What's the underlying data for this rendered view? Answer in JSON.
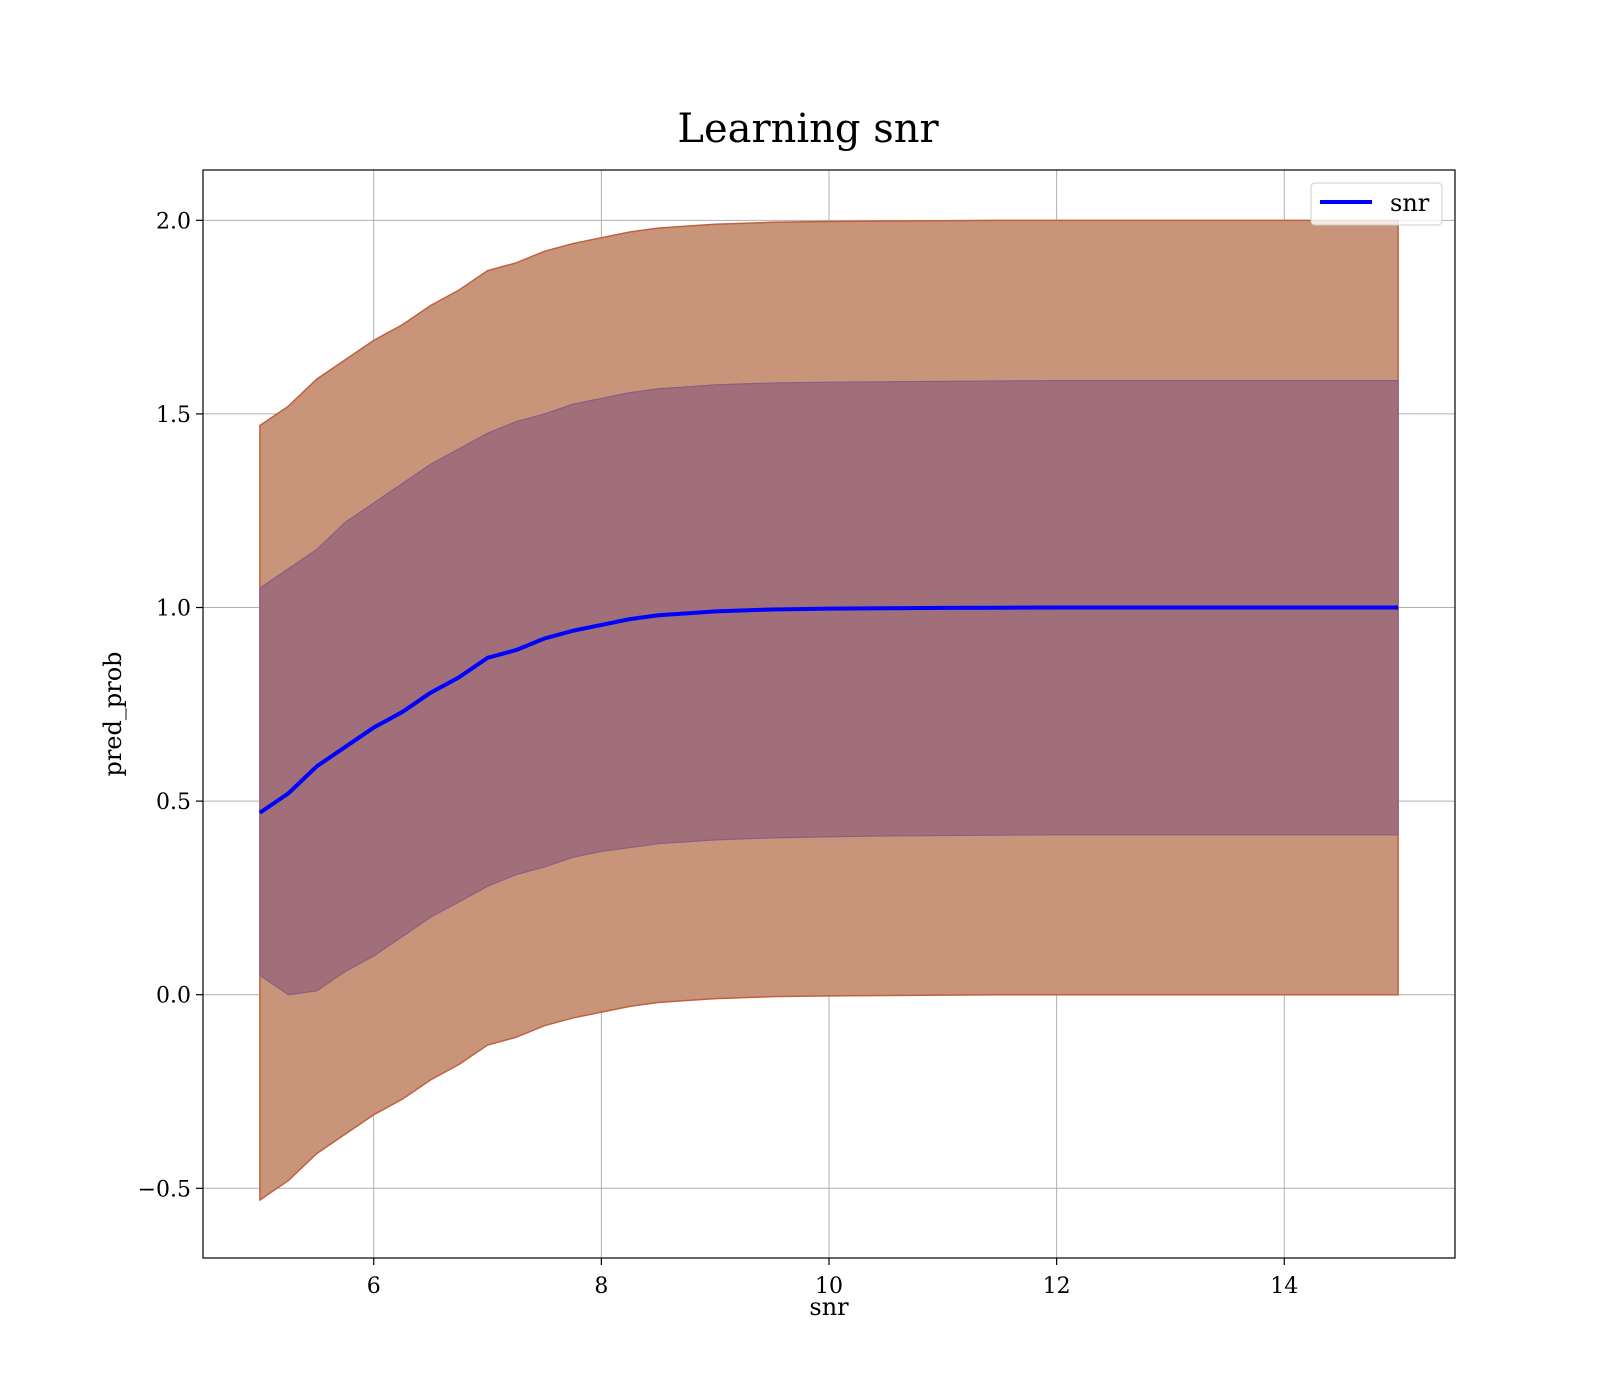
{
  "chart_data": {
    "type": "area",
    "title": "Learning snr",
    "xlabel": "snr",
    "ylabel": "pred_prob",
    "xlim": [
      4.5,
      15.5
    ],
    "ylim": [
      -0.68,
      2.13
    ],
    "xticks": [
      6,
      8,
      10,
      12,
      14
    ],
    "yticks": [
      -0.5,
      0.0,
      0.5,
      1.0,
      1.5,
      2.0
    ],
    "xtick_labels": [
      "6",
      "8",
      "10",
      "12",
      "14"
    ],
    "ytick_labels": [
      "−0.5",
      "0.0",
      "0.5",
      "1.0",
      "1.5",
      "2.0"
    ],
    "grid": true,
    "legend": {
      "position": "top-right",
      "entries": [
        "snr"
      ]
    },
    "colors": {
      "line": "#0000ff",
      "outer_band": "#c8957a",
      "outer_band_edge": "#c0603e",
      "inner_band": "#a16f79",
      "inner_band_edge": "#8a5f84"
    },
    "x": [
      5.0,
      5.25,
      5.5,
      5.75,
      6.0,
      6.25,
      6.5,
      6.75,
      7.0,
      7.25,
      7.5,
      7.75,
      8.0,
      8.25,
      8.5,
      8.75,
      9.0,
      9.5,
      10.0,
      10.5,
      11.0,
      11.5,
      12.0,
      12.5,
      13.0,
      13.5,
      14.0,
      14.5,
      15.0
    ],
    "series": [
      {
        "name": "snr",
        "values": [
          0.47,
          0.52,
          0.59,
          0.64,
          0.69,
          0.73,
          0.78,
          0.82,
          0.87,
          0.89,
          0.92,
          0.94,
          0.955,
          0.97,
          0.98,
          0.985,
          0.99,
          0.995,
          0.997,
          0.998,
          0.999,
          0.9995,
          1.0,
          1.0,
          1.0,
          1.0,
          1.0,
          1.0,
          1.0
        ],
        "inner_band": [
          [
            0.05,
            1.05
          ],
          [
            0.0,
            1.1
          ],
          [
            0.01,
            1.15
          ],
          [
            0.06,
            1.22
          ],
          [
            0.1,
            1.27
          ],
          [
            0.15,
            1.32
          ],
          [
            0.2,
            1.37
          ],
          [
            0.24,
            1.41
          ],
          [
            0.28,
            1.45
          ],
          [
            0.31,
            1.48
          ],
          [
            0.33,
            1.5
          ],
          [
            0.355,
            1.525
          ],
          [
            0.37,
            1.54
          ],
          [
            0.38,
            1.555
          ],
          [
            0.39,
            1.565
          ],
          [
            0.395,
            1.57
          ],
          [
            0.4,
            1.575
          ],
          [
            0.405,
            1.58
          ],
          [
            0.408,
            1.582
          ],
          [
            0.41,
            1.583
          ],
          [
            0.411,
            1.584
          ],
          [
            0.412,
            1.585
          ],
          [
            0.413,
            1.586
          ],
          [
            0.413,
            1.586
          ],
          [
            0.413,
            1.586
          ],
          [
            0.413,
            1.586
          ],
          [
            0.413,
            1.586
          ],
          [
            0.413,
            1.586
          ],
          [
            0.413,
            1.586
          ]
        ],
        "outer_band": [
          [
            -0.53,
            1.47
          ],
          [
            -0.48,
            1.52
          ],
          [
            -0.41,
            1.59
          ],
          [
            -0.36,
            1.64
          ],
          [
            -0.31,
            1.69
          ],
          [
            -0.27,
            1.73
          ],
          [
            -0.22,
            1.78
          ],
          [
            -0.18,
            1.82
          ],
          [
            -0.13,
            1.87
          ],
          [
            -0.11,
            1.89
          ],
          [
            -0.08,
            1.92
          ],
          [
            -0.06,
            1.94
          ],
          [
            -0.045,
            1.955
          ],
          [
            -0.03,
            1.97
          ],
          [
            -0.02,
            1.98
          ],
          [
            -0.015,
            1.985
          ],
          [
            -0.01,
            1.99
          ],
          [
            -0.005,
            1.995
          ],
          [
            -0.003,
            1.997
          ],
          [
            -0.002,
            1.998
          ],
          [
            -0.001,
            1.999
          ],
          [
            0.0,
            2.0
          ],
          [
            0.0,
            2.0
          ],
          [
            0.0,
            2.0
          ],
          [
            0.0,
            2.0
          ],
          [
            0.0,
            2.0
          ],
          [
            0.0,
            2.0
          ],
          [
            0.0,
            2.0
          ],
          [
            0.0,
            2.0
          ]
        ]
      }
    ]
  }
}
